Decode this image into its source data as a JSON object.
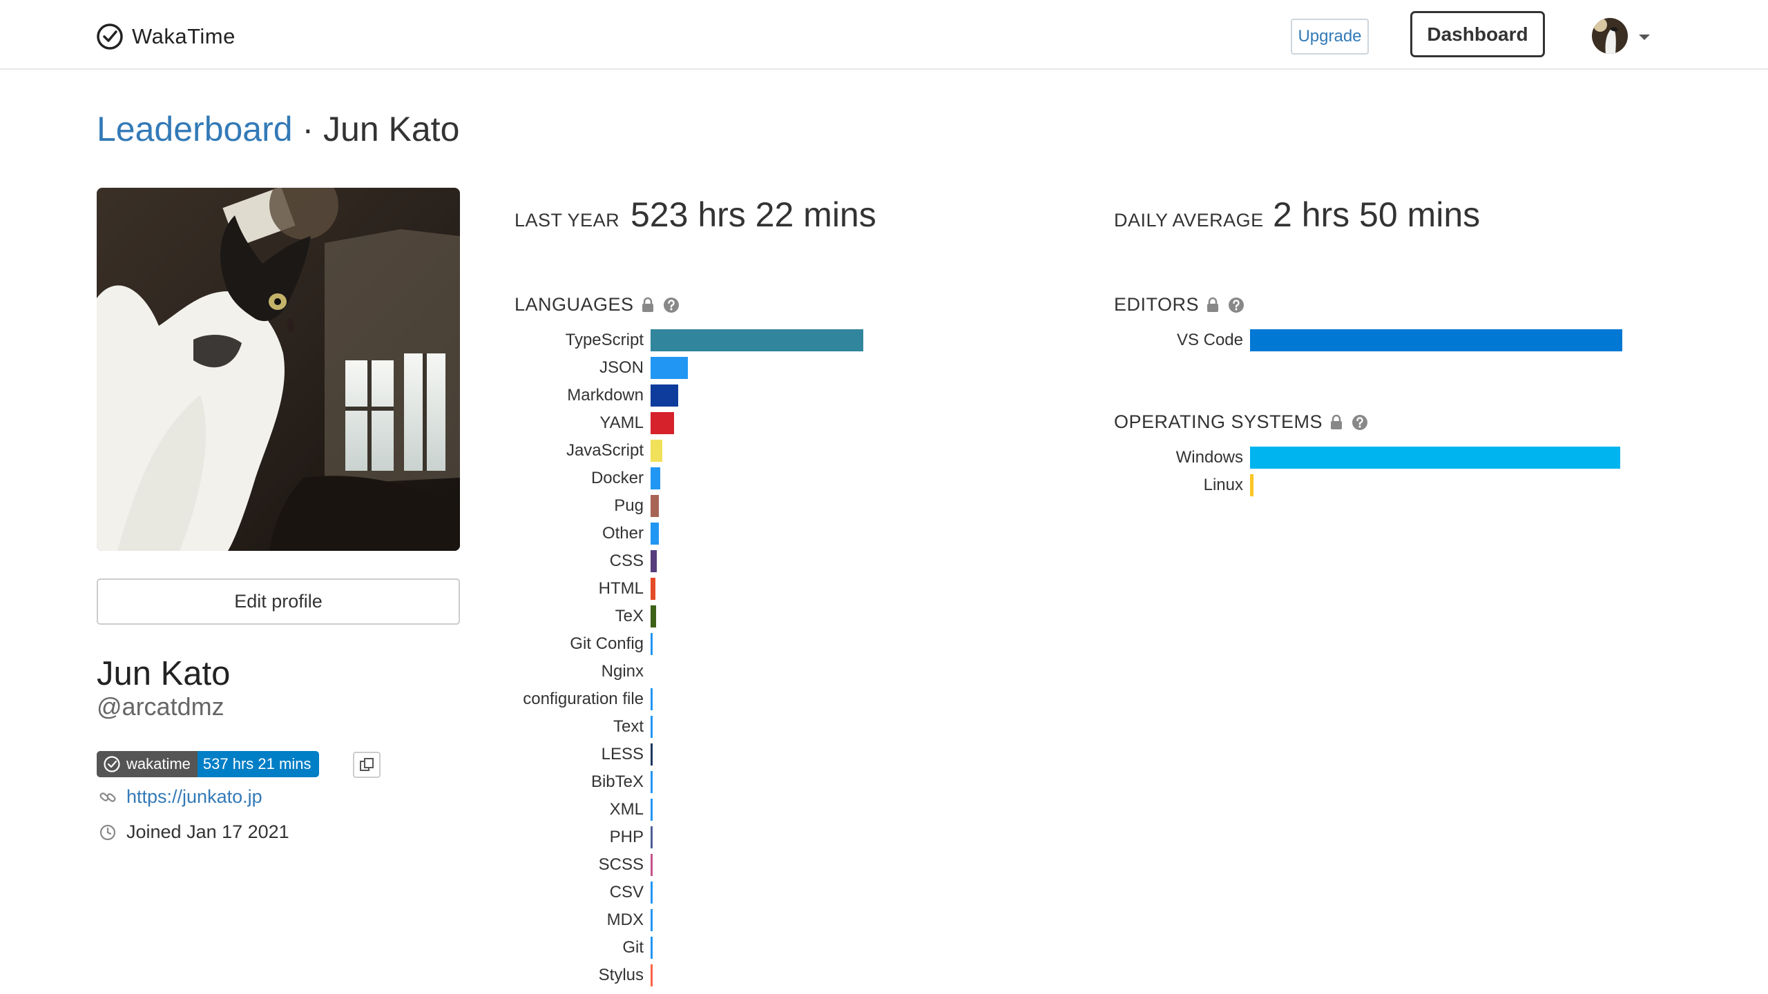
{
  "nav": {
    "brand": "WakaTime",
    "upgrade_label": "Upgrade",
    "dashboard_label": "Dashboard"
  },
  "heading": {
    "link": "Leaderboard",
    "separator": " · ",
    "name": "Jun Kato"
  },
  "profile": {
    "edit_label": "Edit profile",
    "display_name": "Jun Kato",
    "username": "@arcatdmz",
    "badge_left": "wakatime",
    "badge_right": "537 hrs 21 mins",
    "website": "https://junkato.jp",
    "joined": "Joined Jan 17 2021"
  },
  "stats": {
    "last_year_label": "LAST YEAR",
    "last_year_value": "523 hrs 22 mins",
    "daily_avg_label": "DAILY AVERAGE",
    "daily_avg_value": "2 hrs 50 mins"
  },
  "languages": {
    "title": "LANGUAGES",
    "items": [
      {
        "name": "TypeScript",
        "value": 1.0,
        "color": "#31859c"
      },
      {
        "name": "JSON",
        "value": 0.175,
        "color": "#2196f3"
      },
      {
        "name": "Markdown",
        "value": 0.13,
        "color": "#0d3c9c"
      },
      {
        "name": "YAML",
        "value": 0.11,
        "color": "#d6222b"
      },
      {
        "name": "JavaScript",
        "value": 0.055,
        "color": "#f1e05a"
      },
      {
        "name": "Docker",
        "value": 0.045,
        "color": "#2196f3"
      },
      {
        "name": "Pug",
        "value": 0.04,
        "color": "#a86454"
      },
      {
        "name": "Other",
        "value": 0.04,
        "color": "#2196f3"
      },
      {
        "name": "CSS",
        "value": 0.03,
        "color": "#563d7c"
      },
      {
        "name": "HTML",
        "value": 0.022,
        "color": "#e34c26"
      },
      {
        "name": "TeX",
        "value": 0.025,
        "color": "#3d6117"
      },
      {
        "name": "Git Config",
        "value": 0.008,
        "color": "#2196f3"
      },
      {
        "name": "Nginx\nconfiguration file",
        "value": 0.008,
        "color": "#2196f3"
      },
      {
        "name": "Text",
        "value": 0.008,
        "color": "#2196f3"
      },
      {
        "name": "LESS",
        "value": 0.008,
        "color": "#1d365d"
      },
      {
        "name": "BibTeX",
        "value": 0.008,
        "color": "#2196f3"
      },
      {
        "name": "XML",
        "value": 0.008,
        "color": "#2196f3"
      },
      {
        "name": "PHP",
        "value": 0.008,
        "color": "#4f5d95"
      },
      {
        "name": "SCSS",
        "value": 0.008,
        "color": "#c6538c"
      },
      {
        "name": "CSV",
        "value": 0.008,
        "color": "#2196f3"
      },
      {
        "name": "MDX",
        "value": 0.008,
        "color": "#2196f3"
      },
      {
        "name": "Git",
        "value": 0.008,
        "color": "#2196f3"
      },
      {
        "name": "Stylus",
        "value": 0.008,
        "color": "#ff6347"
      }
    ]
  },
  "editors": {
    "title": "EDITORS",
    "items": [
      {
        "name": "VS Code",
        "value": 1.0,
        "color": "#0078d4"
      }
    ]
  },
  "operating_systems": {
    "title": "OPERATING SYSTEMS",
    "items": [
      {
        "name": "Windows",
        "value": 0.995,
        "color": "#00b4ef"
      },
      {
        "name": "Linux",
        "value": 0.01,
        "color": "#fcc624"
      }
    ]
  },
  "colors": {
    "link": "#337ab7",
    "badge_dark": "#555555",
    "badge_blue": "#007ec6"
  },
  "icons": [
    "wakatime-logo-icon",
    "caret-down-icon",
    "lock-icon",
    "help-icon",
    "copy-icon",
    "link-icon",
    "clock-icon"
  ]
}
